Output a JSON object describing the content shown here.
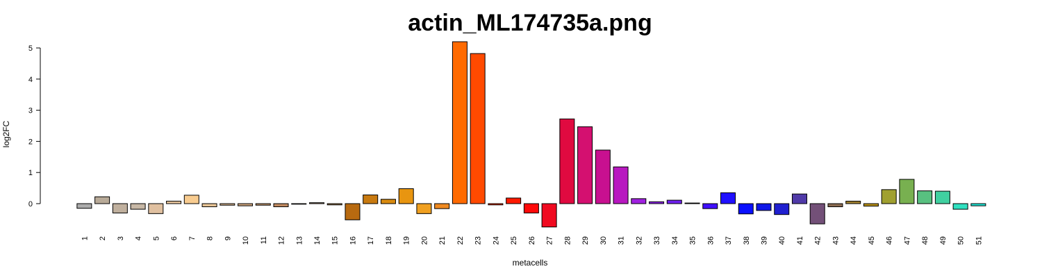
{
  "chart_data": {
    "type": "bar",
    "title": "actin_ML174735a.png",
    "xlabel": "metacells",
    "ylabel": "log2FC",
    "y_ticks": [
      0,
      1,
      2,
      3,
      4,
      5
    ],
    "categories": [
      "1",
      "2",
      "3",
      "4",
      "5",
      "6",
      "7",
      "8",
      "9",
      "10",
      "11",
      "12",
      "13",
      "14",
      "15",
      "16",
      "17",
      "18",
      "19",
      "20",
      "21",
      "22",
      "23",
      "24",
      "25",
      "26",
      "27",
      "28",
      "29",
      "30",
      "31",
      "32",
      "33",
      "34",
      "35",
      "36",
      "37",
      "38",
      "39",
      "40",
      "41",
      "42",
      "43",
      "44",
      "45",
      "46",
      "47",
      "48",
      "49",
      "50",
      "51"
    ],
    "values": [
      -0.15,
      0.22,
      -0.3,
      -0.18,
      -0.32,
      0.08,
      0.27,
      -0.1,
      -0.05,
      -0.07,
      -0.05,
      -0.1,
      0.0,
      0.03,
      -0.04,
      -0.52,
      0.28,
      0.14,
      0.48,
      -0.32,
      -0.16,
      5.2,
      4.82,
      -0.04,
      0.18,
      -0.3,
      -0.75,
      2.72,
      2.47,
      1.72,
      1.18,
      0.16,
      0.06,
      0.11,
      0.02,
      -0.16,
      0.35,
      -0.33,
      -0.22,
      -0.35,
      0.31,
      -0.65,
      -0.1,
      0.08,
      -0.08,
      0.45,
      0.78,
      0.41,
      0.4,
      -0.18,
      -0.07
    ],
    "colors": [
      "#ababab",
      "#b8aa98",
      "#c0b09e",
      "#c7b7a5",
      "#e0c0a0",
      "#e8c59c",
      "#f8cc90",
      "#e8c495",
      "#d8b48c",
      "#d0a67e",
      "#c89a70",
      "#c08a60",
      "#b8a890",
      "#b09070",
      "#a88050",
      "#b86a10",
      "#c87a10",
      "#d88a10",
      "#e89510",
      "#f0a020",
      "#f08a20",
      "#ff6a00",
      "#ff4a00",
      "#ff3000",
      "#ff1a00",
      "#ff0a0a",
      "#f00a20",
      "#e00a40",
      "#d41070",
      "#c81090",
      "#b818c0",
      "#a020e0",
      "#8a20e8",
      "#7020f0",
      "#5a18f8",
      "#4010ff",
      "#2010ff",
      "#0a10ff",
      "#1018e8",
      "#2020d0",
      "#503aa8",
      "#735078",
      "#8a6a50",
      "#a08030",
      "#b89018",
      "#a0a030",
      "#78b050",
      "#58c080",
      "#40d0a0",
      "#30e0c0",
      "#20e8d8"
    ],
    "ylim": [
      -0.75,
      5.2
    ]
  }
}
